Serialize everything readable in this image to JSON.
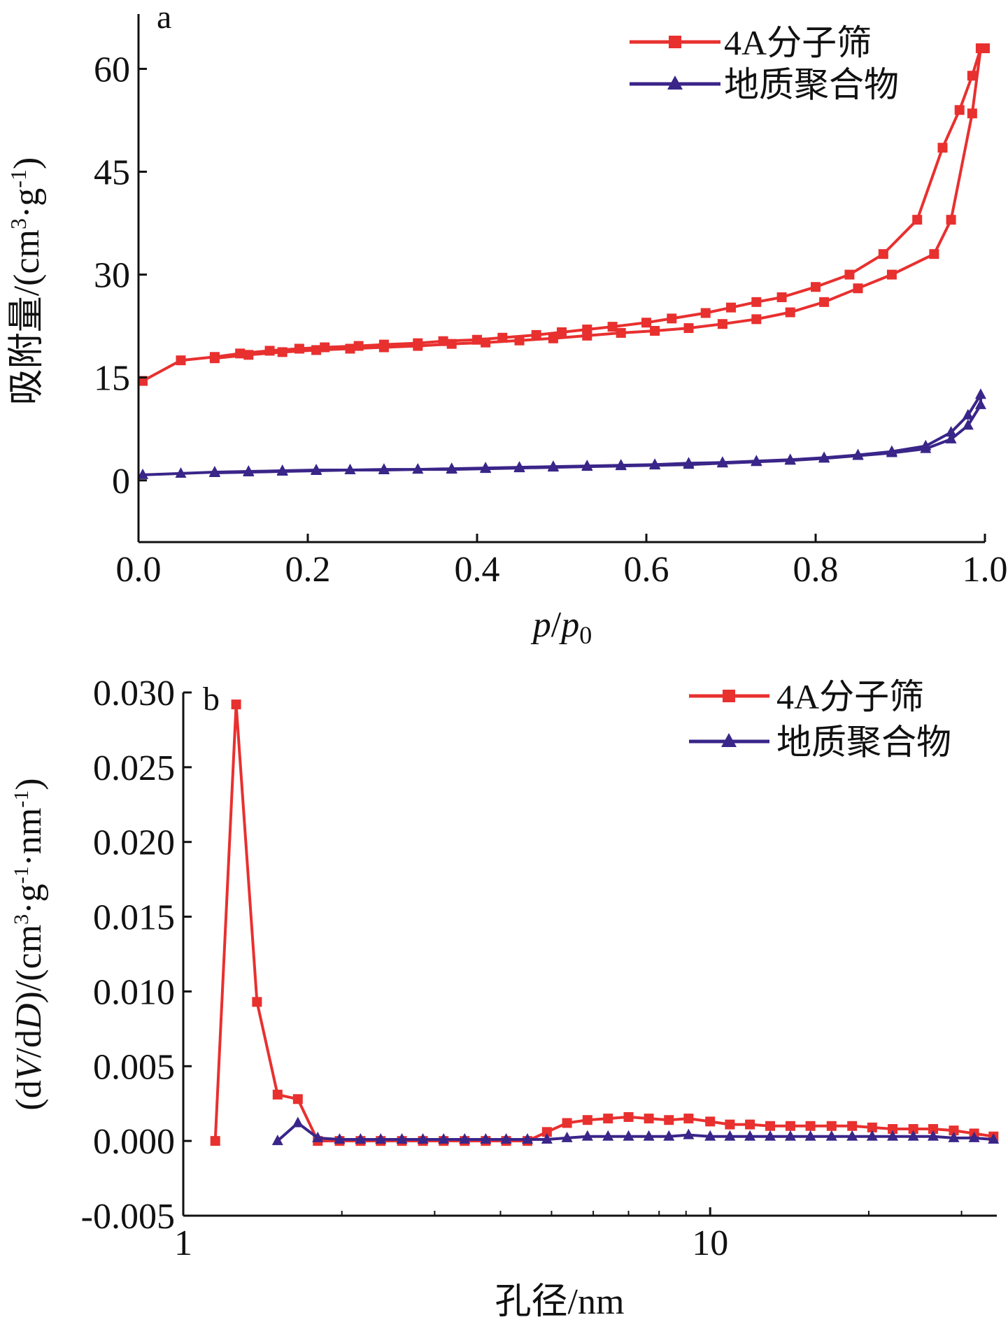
{
  "colors": {
    "s1": "#e8302f",
    "s2": "#3a2589",
    "axis": "#111111"
  },
  "chart_data": [
    {
      "type": "line",
      "panel_label": "a",
      "xlabel": {
        "p": "p",
        "slash": "/",
        "p2": "p",
        "sub": "0"
      },
      "ylabel": {
        "main": "吸附量/(cm",
        "sup1": "3",
        "mid": "·g",
        "sup2": "-1",
        "end": ")"
      },
      "xlim": [
        0.0,
        1.0
      ],
      "ylim": [
        -9,
        68
      ],
      "xticks": [
        {
          "v": 0.0,
          "label": "0.0"
        },
        {
          "v": 0.2,
          "label": "0.2"
        },
        {
          "v": 0.4,
          "label": "0.4"
        },
        {
          "v": 0.6,
          "label": "0.6"
        },
        {
          "v": 0.8,
          "label": "0.8"
        },
        {
          "v": 1.0,
          "label": "1.0"
        }
      ],
      "yticks": [
        {
          "v": 0,
          "label": "0"
        },
        {
          "v": 15,
          "label": "15"
        },
        {
          "v": 30,
          "label": "30"
        },
        {
          "v": 45,
          "label": "45"
        },
        {
          "v": 60,
          "label": "60"
        }
      ],
      "legend": "top-right",
      "series": [
        {
          "name": "4A分子筛",
          "color": "s1",
          "marker": "square",
          "x": [
            0.005,
            0.05,
            0.09,
            0.12,
            0.155,
            0.19,
            0.22,
            0.26,
            0.29,
            0.33,
            0.36,
            0.4,
            0.43,
            0.47,
            0.5,
            0.53,
            0.56,
            0.6,
            0.63,
            0.67,
            0.7,
            0.73,
            0.76,
            0.8,
            0.84,
            0.88,
            0.92,
            0.95,
            0.97,
            0.985,
            0.995,
            1.0,
            0.995,
            0.985,
            0.96,
            0.94,
            0.89,
            0.85,
            0.81,
            0.77,
            0.73,
            0.69,
            0.65,
            0.61,
            0.57,
            0.53,
            0.49,
            0.45,
            0.41,
            0.37,
            0.33,
            0.29,
            0.25,
            0.21,
            0.17,
            0.13,
            0.09
          ],
          "y": [
            14.5,
            17.5,
            18.0,
            18.5,
            18.9,
            19.2,
            19.4,
            19.6,
            19.8,
            20.0,
            20.3,
            20.5,
            20.8,
            21.2,
            21.6,
            22.0,
            22.4,
            23.0,
            23.6,
            24.4,
            25.2,
            26.0,
            26.7,
            28.2,
            30.0,
            33.0,
            38.0,
            48.5,
            54.0,
            59.0,
            63.0,
            63.0,
            63.0,
            53.5,
            38.0,
            33.0,
            30.0,
            28.0,
            26.0,
            24.5,
            23.5,
            22.8,
            22.2,
            21.8,
            21.5,
            21.1,
            20.7,
            20.4,
            20.1,
            19.9,
            19.6,
            19.4,
            19.2,
            19.0,
            18.7,
            18.3,
            17.8
          ]
        },
        {
          "name": "地质聚合物",
          "color": "s2",
          "marker": "triangle",
          "x": [
            0.005,
            0.05,
            0.09,
            0.13,
            0.17,
            0.21,
            0.25,
            0.29,
            0.33,
            0.37,
            0.41,
            0.45,
            0.49,
            0.53,
            0.57,
            0.61,
            0.65,
            0.69,
            0.73,
            0.77,
            0.81,
            0.85,
            0.89,
            0.93,
            0.96,
            0.98,
            0.995,
            0.995,
            0.98,
            0.96,
            0.93,
            0.89,
            0.85,
            0.81,
            0.77,
            0.73,
            0.69,
            0.65,
            0.61,
            0.57,
            0.53,
            0.49,
            0.45,
            0.41,
            0.37,
            0.33,
            0.29,
            0.25,
            0.21,
            0.17,
            0.13,
            0.09
          ],
          "y": [
            0.8,
            1.0,
            1.2,
            1.3,
            1.4,
            1.5,
            1.5,
            1.6,
            1.6,
            1.7,
            1.8,
            1.9,
            2.0,
            2.1,
            2.2,
            2.3,
            2.5,
            2.6,
            2.8,
            3.0,
            3.3,
            3.7,
            4.2,
            5.0,
            7.0,
            9.5,
            12.5,
            11.0,
            8.0,
            6.0,
            4.6,
            4.0,
            3.6,
            3.2,
            2.9,
            2.7,
            2.5,
            2.3,
            2.2,
            2.1,
            2.0,
            1.9,
            1.8,
            1.7,
            1.6,
            1.6,
            1.5,
            1.5,
            1.4,
            1.3,
            1.2,
            1.1
          ]
        }
      ]
    },
    {
      "type": "line",
      "panel_label": "b",
      "xlabel": "孔径/nm",
      "ylabel": {
        "p1": "(d",
        "V": "V",
        "p2": "/d",
        "D": "D",
        "p3": ")/(cm",
        "sup1": "3",
        "p4": "·g",
        "sup2": "-1",
        "p5": "·nm",
        "sup3": "-1",
        "p6": ")"
      },
      "xscale": "log",
      "xlim": [
        1,
        35
      ],
      "ylim": [
        -0.005,
        0.03
      ],
      "xticks": [
        {
          "v": 1,
          "label": "1"
        },
        {
          "v": 10,
          "label": "10"
        }
      ],
      "yticks": [
        {
          "v": -0.005,
          "label": "-0.005"
        },
        {
          "v": 0.0,
          "label": "0.000"
        },
        {
          "v": 0.005,
          "label": "0.005"
        },
        {
          "v": 0.01,
          "label": "0.010"
        },
        {
          "v": 0.015,
          "label": "0.015"
        },
        {
          "v": 0.02,
          "label": "0.020"
        },
        {
          "v": 0.025,
          "label": "0.025"
        },
        {
          "v": 0.03,
          "label": "0.030"
        }
      ],
      "legend": "top-right",
      "series": [
        {
          "name": "4A分子筛",
          "color": "s1",
          "marker": "square",
          "x": [
            1.15,
            1.26,
            1.38,
            1.51,
            1.65,
            1.8,
            1.98,
            2.17,
            2.37,
            2.6,
            2.85,
            3.12,
            3.42,
            3.75,
            4.1,
            4.5,
            4.9,
            5.35,
            5.85,
            6.4,
            7.0,
            7.65,
            8.35,
            9.1,
            10.0,
            10.9,
            11.9,
            13.0,
            14.2,
            15.5,
            17.0,
            18.6,
            20.3,
            22.2,
            24.3,
            26.5,
            29.0,
            31.7,
            34.5
          ],
          "y": [
            0.0,
            0.0292,
            0.0093,
            0.0031,
            0.0028,
            0.0,
            0.0,
            0.0,
            0.0,
            0.0,
            0.0,
            0.0,
            0.0,
            0.0,
            0.0,
            0.0,
            0.0006,
            0.0012,
            0.0014,
            0.0015,
            0.0016,
            0.0015,
            0.0014,
            0.0015,
            0.0013,
            0.0011,
            0.0011,
            0.001,
            0.001,
            0.001,
            0.001,
            0.001,
            0.0009,
            0.0008,
            0.0008,
            0.0008,
            0.0007,
            0.0005,
            0.0003
          ]
        },
        {
          "name": "地质聚合物",
          "color": "s2",
          "marker": "triangle",
          "x": [
            1.51,
            1.65,
            1.8,
            1.98,
            2.17,
            2.37,
            2.6,
            2.85,
            3.12,
            3.42,
            3.75,
            4.1,
            4.5,
            4.9,
            5.35,
            5.85,
            6.4,
            7.0,
            7.65,
            8.35,
            9.1,
            10.0,
            10.9,
            11.9,
            13.0,
            14.2,
            15.5,
            17.0,
            18.6,
            20.3,
            22.2,
            24.3,
            26.5,
            29.0,
            31.7,
            34.5
          ],
          "y": [
            0.0,
            0.0012,
            0.0002,
            0.0001,
            0.0001,
            0.0001,
            0.0001,
            0.0001,
            0.0001,
            0.0001,
            0.0001,
            0.0001,
            0.0001,
            0.0001,
            0.0002,
            0.0003,
            0.0003,
            0.0003,
            0.0003,
            0.0003,
            0.0004,
            0.0003,
            0.0003,
            0.0003,
            0.0003,
            0.0003,
            0.0003,
            0.0003,
            0.0003,
            0.0003,
            0.0003,
            0.0003,
            0.0003,
            0.0002,
            0.0002,
            0.0001
          ]
        }
      ]
    }
  ]
}
